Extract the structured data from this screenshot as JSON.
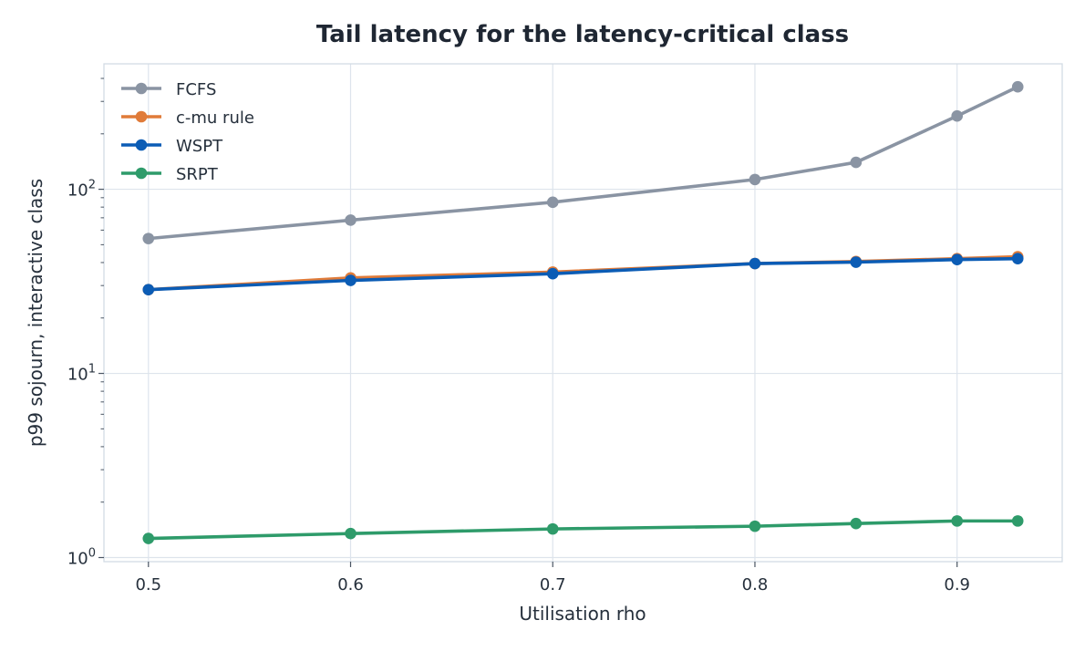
{
  "chart_data": {
    "type": "line",
    "title": "Tail latency for the latency-critical class",
    "xlabel": "Utilisation rho",
    "ylabel": "p99 sojourn, interactive class",
    "yscale": "log",
    "xlim": [
      0.478,
      0.952
    ],
    "ylim": [
      0.95,
      480
    ],
    "grid": true,
    "legend_position": "top-left",
    "x": [
      0.5,
      0.6,
      0.7,
      0.8,
      0.85,
      0.9,
      0.93
    ],
    "x_ticks": [
      {
        "value": 0.5,
        "label": "0.5"
      },
      {
        "value": 0.6,
        "label": "0.6"
      },
      {
        "value": 0.7,
        "label": "0.7"
      },
      {
        "value": 0.8,
        "label": "0.8"
      },
      {
        "value": 0.9,
        "label": "0.9"
      }
    ],
    "y_ticks": [
      {
        "value": 1,
        "base": "10",
        "exp": "0"
      },
      {
        "value": 10,
        "base": "10",
        "exp": "1"
      },
      {
        "value": 100,
        "base": "10",
        "exp": "2"
      }
    ],
    "series": [
      {
        "name": "FCFS",
        "color": "#8a94a3",
        "values": [
          54,
          68,
          85,
          113,
          140,
          250,
          360
        ]
      },
      {
        "name": "c-mu rule",
        "color": "#e07b39",
        "values": [
          28.5,
          33,
          35.5,
          39.5,
          40.5,
          42,
          43
        ]
      },
      {
        "name": "WSPT",
        "color": "#0b5cb5",
        "values": [
          28.5,
          32,
          34.8,
          39.5,
          40.2,
          41.5,
          42
        ]
      },
      {
        "name": "SRPT",
        "color": "#2e9b6a",
        "values": [
          1.27,
          1.35,
          1.43,
          1.48,
          1.53,
          1.58,
          1.58
        ]
      }
    ]
  }
}
